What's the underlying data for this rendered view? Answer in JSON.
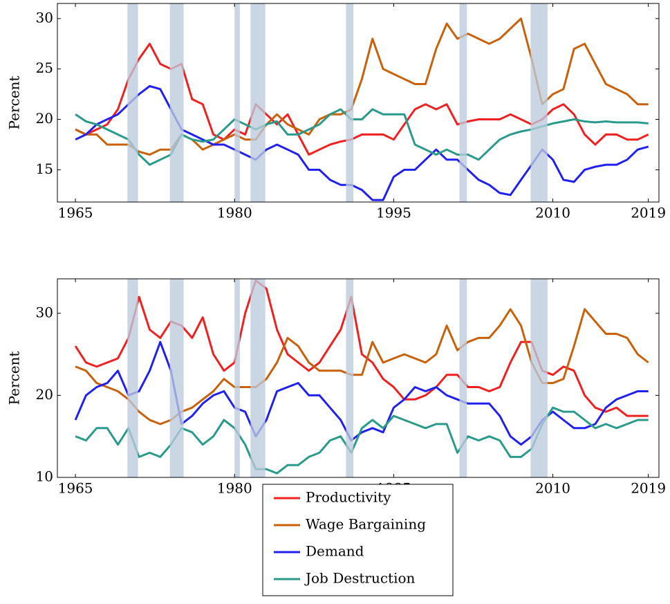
{
  "chart_data": [
    {
      "type": "line",
      "y_label": "Percent",
      "x": [
        1965,
        1966,
        1967,
        1968,
        1969,
        1970,
        1971,
        1972,
        1973,
        1974,
        1975,
        1976,
        1977,
        1978,
        1979,
        1980,
        1981,
        1982,
        1983,
        1984,
        1985,
        1986,
        1987,
        1988,
        1989,
        1990,
        1991,
        1992,
        1993,
        1994,
        1995,
        1996,
        1997,
        1998,
        1999,
        2000,
        2001,
        2002,
        2003,
        2004,
        2005,
        2006,
        2007,
        2008,
        2009,
        2010,
        2011,
        2012,
        2013,
        2014,
        2015,
        2016,
        2017,
        2018,
        2019
      ],
      "xlim": [
        1963.3,
        2020
      ],
      "xticks": [
        1965,
        1980,
        1995,
        2010,
        2019
      ],
      "ylim": [
        11.8,
        31.5
      ],
      "yticks": [
        15,
        20,
        25,
        30
      ],
      "shaded_periods": [
        [
          1969.9,
          1970.9
        ],
        [
          1973.9,
          1975.2
        ],
        [
          1980.0,
          1980.5
        ],
        [
          1981.5,
          1982.9
        ],
        [
          1990.5,
          1991.2
        ],
        [
          2001.2,
          2001.9
        ],
        [
          2007.9,
          2009.5
        ]
      ],
      "series": [
        {
          "name": "Productivity",
          "color": "#f02020",
          "values": [
            19,
            18.5,
            19,
            19.5,
            21,
            24,
            26,
            27.5,
            25.5,
            25,
            25.5,
            22,
            21.5,
            18.5,
            18,
            19,
            18.5,
            21.5,
            20.5,
            19.5,
            20.5,
            18.5,
            16.5,
            17,
            17.5,
            17.8,
            18,
            18.5,
            18.5,
            18.5,
            18,
            19.5,
            21,
            21.5,
            21,
            21.5,
            19.5,
            19.8,
            20,
            20,
            20,
            20.5,
            20,
            19.5,
            20,
            21,
            21.5,
            20.5,
            18.5,
            17.5,
            18.5,
            18.5,
            18,
            18,
            18.5
          ]
        },
        {
          "name": "Wage Bargaining",
          "color": "#c8610a",
          "values": [
            19,
            18.5,
            18.5,
            17.5,
            17.5,
            17.5,
            16.8,
            16.5,
            17,
            17,
            18.5,
            18,
            17,
            17.5,
            18,
            18.5,
            18,
            18,
            19.5,
            20.5,
            19.5,
            19,
            18.5,
            20,
            20.5,
            20.5,
            21,
            24,
            28,
            25,
            24.5,
            24,
            23.5,
            23.5,
            27,
            29.5,
            28,
            28.5,
            28,
            27.5,
            28,
            29,
            30,
            26,
            21.5,
            22.5,
            23,
            27,
            27.5,
            25.5,
            23.5,
            23,
            22.5,
            21.5,
            21.5
          ]
        },
        {
          "name": "Demand",
          "color": "#2020f0",
          "values": [
            18,
            18.5,
            19.5,
            20,
            20.5,
            21.5,
            22.5,
            23.3,
            23,
            21,
            19,
            18.5,
            18,
            17.5,
            17.5,
            17,
            16.5,
            16,
            17,
            17.5,
            17,
            16.5,
            15,
            15,
            14,
            13.5,
            13.5,
            13,
            12,
            12,
            14.3,
            15,
            15,
            16,
            17,
            16,
            16,
            15,
            14,
            13.5,
            12.7,
            12.5,
            14,
            15.5,
            17,
            16,
            14,
            13.8,
            15,
            15.3,
            15.5,
            15.5,
            16,
            17,
            17.3
          ]
        },
        {
          "name": "Job Destruction",
          "color": "#2a9a8a",
          "values": [
            20.5,
            19.8,
            19.5,
            19,
            18.5,
            18,
            16.5,
            15.5,
            16,
            16.5,
            18.5,
            18,
            17.8,
            18,
            19,
            20,
            19.5,
            19,
            19.5,
            19.8,
            18.5,
            18.5,
            19,
            19.5,
            20.5,
            21,
            20,
            20,
            21,
            20.5,
            20.5,
            20.5,
            17.5,
            17,
            16.5,
            17,
            16.5,
            16.5,
            16,
            17,
            18,
            18.5,
            18.8,
            19,
            19.3,
            19.6,
            19.8,
            20,
            19.8,
            19.7,
            19.8,
            19.7,
            19.7,
            19.7,
            19.6
          ]
        }
      ]
    },
    {
      "type": "line",
      "y_label": "Percent",
      "x": [
        1965,
        1966,
        1967,
        1968,
        1969,
        1970,
        1971,
        1972,
        1973,
        1974,
        1975,
        1976,
        1977,
        1978,
        1979,
        1980,
        1981,
        1982,
        1983,
        1984,
        1985,
        1986,
        1987,
        1988,
        1989,
        1990,
        1991,
        1992,
        1993,
        1994,
        1995,
        1996,
        1997,
        1998,
        1999,
        2000,
        2001,
        2002,
        2003,
        2004,
        2005,
        2006,
        2007,
        2008,
        2009,
        2010,
        2011,
        2012,
        2013,
        2014,
        2015,
        2016,
        2017,
        2018,
        2019
      ],
      "xlim": [
        1963.3,
        2020
      ],
      "xticks": [
        1965,
        1980,
        1995,
        2010,
        2019
      ],
      "ylim": [
        10,
        34.2
      ],
      "yticks": [
        10,
        20,
        30
      ],
      "shaded_periods": [
        [
          1969.9,
          1970.9
        ],
        [
          1973.9,
          1975.2
        ],
        [
          1980.0,
          1980.5
        ],
        [
          1981.5,
          1982.9
        ],
        [
          1990.5,
          1991.2
        ],
        [
          2001.2,
          2001.9
        ],
        [
          2007.9,
          2009.5
        ]
      ],
      "series": [
        {
          "name": "Productivity",
          "color": "#f02020",
          "values": [
            26,
            24,
            23.5,
            24,
            24.5,
            27,
            32,
            28,
            27,
            29,
            28.5,
            27,
            29.5,
            25,
            23,
            24,
            30,
            34,
            33,
            28,
            25,
            24,
            23,
            24,
            26,
            28,
            32,
            25,
            24,
            22,
            21,
            19.5,
            19.5,
            20,
            21,
            22.5,
            22.5,
            21,
            21,
            20.5,
            21,
            24,
            26.5,
            26.5,
            23,
            22.5,
            23.5,
            23,
            20,
            18.5,
            18,
            18.5,
            17.5,
            17.5,
            17.5
          ]
        },
        {
          "name": "Wage Bargaining",
          "color": "#c8610a",
          "values": [
            23.5,
            23,
            21.5,
            21,
            20.5,
            19.5,
            18,
            17,
            16.5,
            17,
            18,
            18.5,
            19.5,
            20.5,
            22,
            21,
            21,
            21,
            22,
            24,
            27,
            26,
            24,
            23,
            23,
            23,
            22.5,
            22.5,
            26.5,
            24,
            24.5,
            25,
            24.5,
            24,
            25,
            28.5,
            25.5,
            26.5,
            27,
            27,
            28.5,
            30.5,
            28.5,
            24,
            21.5,
            21.5,
            22,
            26,
            30.5,
            29,
            27.5,
            27.5,
            27,
            25,
            24
          ]
        },
        {
          "name": "Demand",
          "color": "#2020f0",
          "values": [
            17,
            20,
            21,
            21.5,
            23,
            20,
            20.5,
            23,
            26.5,
            23,
            16.5,
            17.5,
            19,
            20,
            20.5,
            18.5,
            18,
            15,
            17,
            20.5,
            21,
            21.5,
            20,
            20,
            18.5,
            17,
            14.5,
            15.5,
            16,
            15.5,
            18.5,
            19.5,
            21,
            20.5,
            21,
            20,
            19.5,
            19,
            19,
            19,
            17.5,
            15,
            14,
            15,
            17,
            18,
            17,
            16,
            16,
            16.5,
            18.5,
            19.5,
            20,
            20.5,
            20.5
          ]
        },
        {
          "name": "Job Destruction",
          "color": "#2a9a8a",
          "values": [
            15,
            14.5,
            16,
            16,
            14,
            16,
            12.5,
            13,
            12.5,
            14,
            16,
            15.5,
            14,
            15,
            17,
            16,
            14,
            11,
            11,
            10.5,
            11.5,
            11.5,
            12.5,
            13,
            14.5,
            15,
            13,
            16,
            17,
            16,
            17.5,
            17,
            16.5,
            16,
            16.5,
            16.5,
            13,
            15,
            14.5,
            15,
            14.5,
            12.5,
            12.5,
            13.5,
            16.5,
            18.5,
            18,
            18,
            17,
            16,
            16.5,
            16,
            16.5,
            17,
            17
          ]
        }
      ]
    }
  ]
}
